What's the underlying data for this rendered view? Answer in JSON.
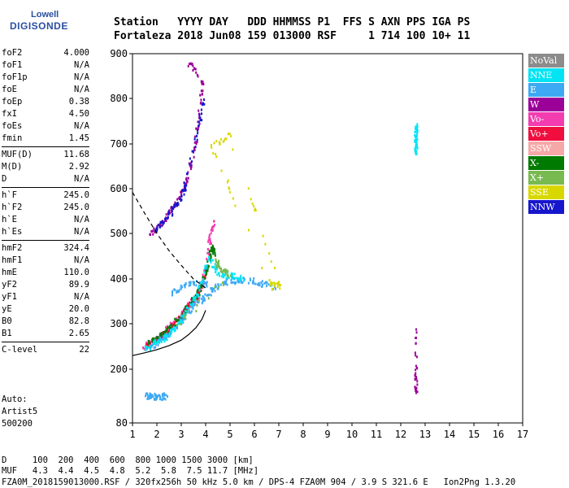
{
  "logo": {
    "line1": "Lowell",
    "line2": "DIGISONDE"
  },
  "header": {
    "row1": "Station   YYYY DAY   DDD HHMMSS P1  FFS S AXN PPS IGA PS",
    "row2": "Fortaleza 2018 Jun08 159 013000 RSF     1 714 100 10+ 11"
  },
  "params": [
    [
      [
        "foF2",
        "4.000"
      ],
      [
        "foF1",
        "N/A"
      ],
      [
        "foF1p",
        "N/A"
      ],
      [
        "foE",
        "N/A"
      ],
      [
        "foEp",
        "0.38"
      ],
      [
        "fxI",
        "4.50"
      ],
      [
        "foEs",
        "N/A"
      ],
      [
        "fmin",
        "1.45"
      ]
    ],
    [
      [
        "MUF(D)",
        "11.68"
      ],
      [
        "M(D)",
        "2.92"
      ],
      [
        "D",
        "N/A"
      ]
    ],
    [
      [
        "h`F",
        "245.0"
      ],
      [
        "h`F2",
        "245.0"
      ],
      [
        "h`E",
        "N/A"
      ],
      [
        "h`Es",
        "N/A"
      ]
    ],
    [
      [
        "hmF2",
        "324.4"
      ],
      [
        "hmF1",
        "N/A"
      ],
      [
        "hmE",
        "110.0"
      ],
      [
        "yF2",
        "89.9"
      ],
      [
        "yF1",
        "N/A"
      ],
      [
        "yE",
        "20.0"
      ],
      [
        "B0",
        "82.8"
      ],
      [
        "B1",
        "2.65"
      ]
    ],
    [
      [
        "C-level",
        "22"
      ]
    ]
  ],
  "auto": [
    "Auto:",
    "Artist5",
    "500200"
  ],
  "legend": [
    {
      "label": "NoVal",
      "color": "#8c8c8c"
    },
    {
      "label": "NNE",
      "color": "#00e4f4"
    },
    {
      "label": "E",
      "color": "#3da9f5"
    },
    {
      "label": "W",
      "color": "#9b0099"
    },
    {
      "label": "Vo-",
      "color": "#f23cb0"
    },
    {
      "label": "Vo+",
      "color": "#ef0e3e"
    },
    {
      "label": "SSW",
      "color": "#f6a8a8"
    },
    {
      "label": "X-",
      "color": "#007a00"
    },
    {
      "label": "X+",
      "color": "#78ba50"
    },
    {
      "label": "SSE",
      "color": "#d8d800"
    },
    {
      "label": "NNW",
      "color": "#1616cc"
    }
  ],
  "bottom": {
    "drow": "D     100  200  400  600  800 1000 1500 3000 [km]",
    "mrow": "MUF   4.3  4.4  4.5  4.8  5.2  5.8  7.5 11.7 [MHz]",
    "footer": "FZA0M_2018159013000.RSF / 320fx256h 50 kHz 5.0 km / DPS-4 FZA0M 904 / 3.9 S 321.6 E   Ion2Png 1.3.20"
  },
  "chart_data": {
    "type": "scatter",
    "title": "",
    "xlabel": "",
    "ylabel": "",
    "xlim": [
      1,
      17
    ],
    "ylim": [
      80,
      900
    ],
    "x_ticks": [
      1,
      2,
      3,
      4,
      5,
      6,
      7,
      8,
      9,
      10,
      11,
      12,
      13,
      14,
      15,
      16,
      17
    ],
    "y_ticks": [
      80,
      200,
      300,
      400,
      500,
      600,
      700,
      800,
      900
    ],
    "grid": false,
    "legend_position": "right",
    "ntrace": [
      [
        1.0,
        230
      ],
      [
        1.5,
        236
      ],
      [
        2.0,
        243
      ],
      [
        2.5,
        252
      ],
      [
        3.0,
        264
      ],
      [
        3.3,
        276
      ],
      [
        3.6,
        291
      ],
      [
        3.85,
        310
      ],
      [
        4.0,
        330
      ]
    ],
    "mufcurve": [
      [
        1.0,
        592
      ],
      [
        1.5,
        545
      ],
      [
        2.0,
        500
      ],
      [
        2.5,
        462
      ],
      [
        3.0,
        430
      ],
      [
        3.5,
        400
      ],
      [
        4.0,
        380
      ]
    ],
    "traces": [
      {
        "color": "#f23cb0",
        "points": [
          [
            1.4,
            250
          ],
          [
            1.8,
            262
          ],
          [
            2.2,
            278
          ],
          [
            2.6,
            300
          ],
          [
            3.0,
            325
          ],
          [
            3.3,
            345
          ],
          [
            3.6,
            365
          ],
          [
            3.85,
            395
          ],
          [
            4.0,
            430
          ],
          [
            4.15,
            490
          ],
          [
            4.3,
            530
          ]
        ]
      },
      {
        "color": "#ef0e3e",
        "points": [
          [
            1.5,
            252
          ],
          [
            1.9,
            265
          ],
          [
            2.3,
            282
          ],
          [
            2.7,
            305
          ],
          [
            3.1,
            330
          ],
          [
            3.4,
            350
          ],
          [
            3.7,
            372
          ],
          [
            3.95,
            410
          ]
        ]
      },
      {
        "color": "#007a00",
        "points": [
          [
            1.6,
            258
          ],
          [
            2.1,
            275
          ],
          [
            2.5,
            292
          ],
          [
            2.9,
            315
          ],
          [
            3.2,
            338
          ],
          [
            3.5,
            358
          ],
          [
            3.8,
            385
          ],
          [
            4.05,
            430
          ],
          [
            4.2,
            470
          ],
          [
            4.35,
            460
          ]
        ]
      },
      {
        "color": "#3da9f5",
        "points": [
          [
            1.7,
            250
          ],
          [
            2.2,
            268
          ],
          [
            2.7,
            290
          ],
          [
            3.1,
            318
          ],
          [
            3.5,
            345
          ],
          [
            3.9,
            360
          ],
          [
            4.3,
            380
          ],
          [
            4.8,
            395
          ],
          [
            5.3,
            400
          ],
          [
            5.8,
            400
          ],
          [
            6.3,
            390
          ],
          [
            6.8,
            385
          ],
          [
            2.6,
            370
          ],
          [
            3.0,
            385
          ],
          [
            3.5,
            395
          ],
          [
            4.0,
            390
          ]
        ]
      },
      {
        "color": "#00e4f4",
        "points": [
          [
            1.5,
            245
          ],
          [
            2.0,
            262
          ],
          [
            2.4,
            275
          ],
          [
            2.8,
            298
          ],
          [
            3.2,
            330
          ],
          [
            3.6,
            368
          ],
          [
            4.1,
            450
          ],
          [
            4.5,
            415
          ],
          [
            5.0,
            410
          ],
          [
            5.5,
            405
          ]
        ]
      },
      {
        "color": "#9b0099",
        "points": [
          [
            1.7,
            500
          ],
          [
            2.1,
            520
          ],
          [
            2.5,
            548
          ],
          [
            2.9,
            580
          ],
          [
            3.2,
            620
          ],
          [
            3.5,
            690
          ],
          [
            3.7,
            760
          ],
          [
            3.85,
            840
          ],
          [
            3.3,
            880
          ]
        ]
      },
      {
        "color": "#d8d800",
        "points": [
          [
            6.6,
            390
          ],
          [
            7.0,
            388
          ],
          [
            5.0,
            720
          ],
          [
            4.2,
            700
          ],
          [
            6.7,
            380
          ]
        ]
      },
      {
        "color": "#1616cc",
        "points": [
          [
            1.9,
            510
          ],
          [
            2.3,
            535
          ],
          [
            2.8,
            565
          ],
          [
            3.1,
            600
          ],
          [
            3.6,
            720
          ],
          [
            3.9,
            800
          ]
        ]
      },
      {
        "color": "#78ba50",
        "points": [
          [
            4.4,
            440
          ],
          [
            4.6,
            425
          ],
          [
            5.0,
            410
          ],
          [
            2.8,
            300
          ]
        ]
      },
      {
        "color": "#00e4f4",
        "points": [
          [
            12.6,
            740
          ],
          [
            12.6,
            720
          ],
          [
            12.6,
            700
          ],
          [
            12.6,
            680
          ]
        ]
      },
      {
        "color": "#9b0099",
        "points": [
          [
            12.6,
            290
          ],
          [
            12.6,
            185
          ],
          [
            12.6,
            150
          ]
        ]
      },
      {
        "color": "#3da9f5",
        "points": [
          [
            1.5,
            143
          ],
          [
            1.8,
            142
          ],
          [
            2.1,
            141
          ],
          [
            2.4,
            142
          ]
        ]
      }
    ]
  }
}
